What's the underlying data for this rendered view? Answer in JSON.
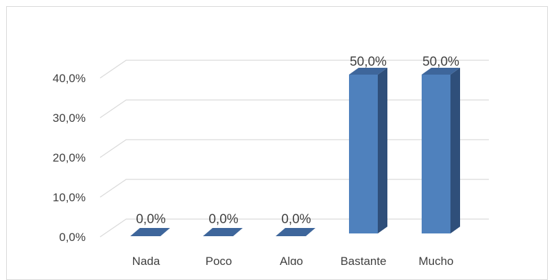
{
  "chart_data": {
    "type": "bar",
    "style": "3d-column",
    "categories": [
      "Nada",
      "Poco",
      "Algo",
      "Bastante",
      "Mucho"
    ],
    "values": [
      0,
      0,
      0,
      50,
      50
    ],
    "value_labels": [
      "0,0%",
      "0,0%",
      "0,0%",
      "50,0%",
      "50,0%"
    ],
    "y_ticks": [
      "0,0%",
      "10,0%",
      "20,0%",
      "30,0%",
      "40,0%"
    ],
    "y_tick_values": [
      0,
      10,
      20,
      30,
      40
    ],
    "ylim": [
      0,
      40
    ],
    "title": "",
    "xlabel": "",
    "ylabel": "",
    "grid": true,
    "legend": "none",
    "colors": {
      "bar_front": "#4f81bd",
      "bar_side": "#2f4f7a",
      "bar_top": "#3e669b",
      "grid": "#d9d9d9",
      "text": "#404040"
    }
  }
}
